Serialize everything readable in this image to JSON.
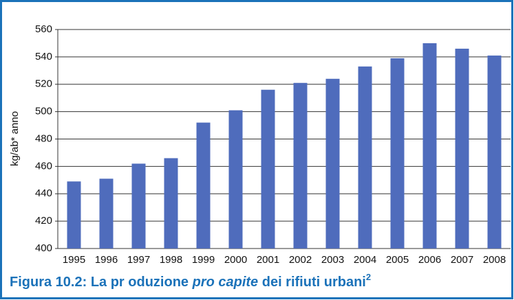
{
  "chart_data": {
    "type": "bar",
    "caption": [
      "Figura 10.2: La pr oduzione ",
      "pro capite",
      " dei rifiuti urbani",
      "2"
    ],
    "ylabel": "kg/ab* anno",
    "categories": [
      "1995",
      "1996",
      "1997",
      "1998",
      "1999",
      "2000",
      "2001",
      "2002",
      "2003",
      "2004",
      "2005",
      "2006",
      "2007",
      "2008"
    ],
    "values": [
      449,
      451,
      462,
      466,
      492,
      501,
      516,
      521,
      524,
      533,
      539,
      550,
      546,
      541
    ],
    "color": "#4f6cbc",
    "ylim": [
      400,
      560
    ],
    "yticks": [
      400,
      420,
      440,
      460,
      480,
      500,
      520,
      540,
      560
    ],
    "grid": true
  }
}
